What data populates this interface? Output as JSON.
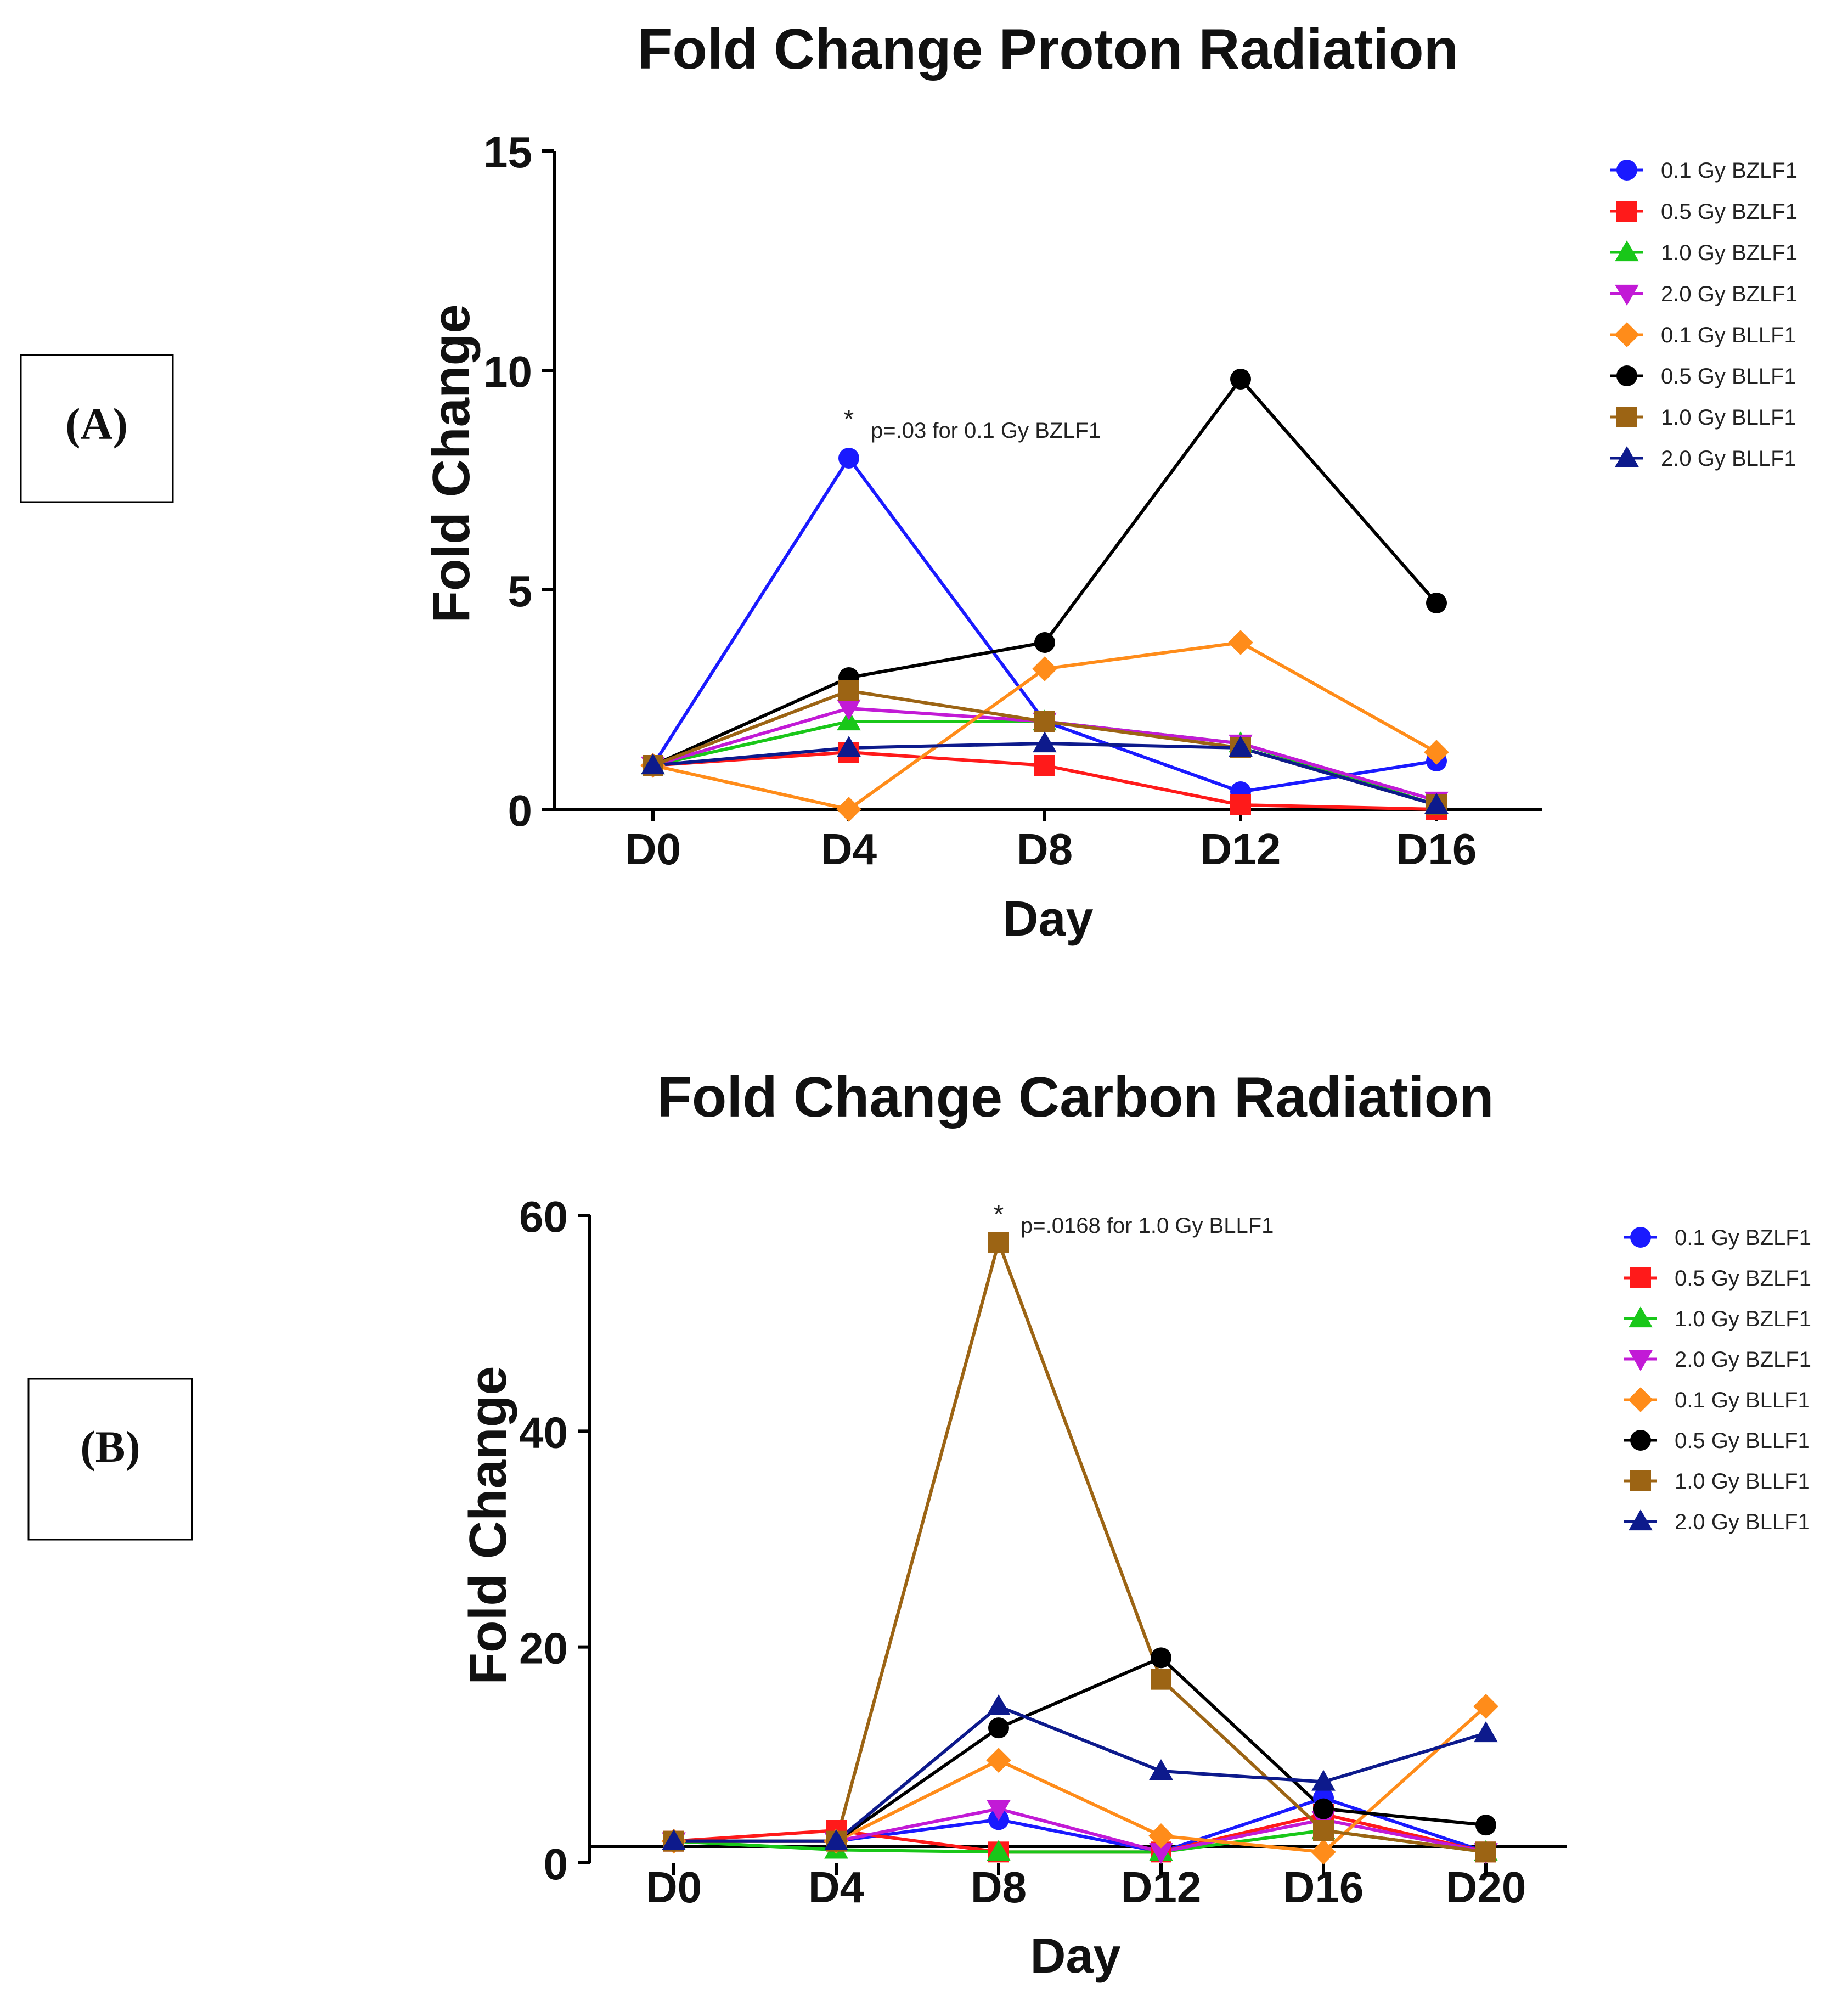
{
  "legend_labels": [
    "0.1 Gy BZLF1",
    "0.5 Gy BZLF1",
    "1.0 Gy BZLF1",
    "2.0 Gy BZLF1",
    "0.1 Gy BLLF1",
    "0.5 Gy BLLF1",
    "1.0 Gy BLLF1",
    "2.0 Gy BLLF1"
  ],
  "series_style": [
    {
      "color": "#1a1aff",
      "marker": "circle"
    },
    {
      "color": "#ff1a1a",
      "marker": "square"
    },
    {
      "color": "#19c719",
      "marker": "triangle-up"
    },
    {
      "color": "#c21ad6",
      "marker": "triangle-down"
    },
    {
      "color": "#ff8c1a",
      "marker": "diamond"
    },
    {
      "color": "#000000",
      "marker": "circle"
    },
    {
      "color": "#9c6414",
      "marker": "square"
    },
    {
      "color": "#0d1a8c",
      "marker": "triangle-up"
    }
  ],
  "chart_data": [
    {
      "panel": "(A)",
      "type": "line",
      "title": "Fold Change Proton Radiation",
      "xlabel": "Day",
      "ylabel": "Fold  Change",
      "categories": [
        "D0",
        "D4",
        "D8",
        "D12",
        "D16"
      ],
      "ylim": [
        0,
        15
      ],
      "yticks": [
        "0",
        "5",
        "10",
        "15"
      ],
      "annotation": {
        "star": "*",
        "text": "p=.03 for 0.1 Gy  BZLF1",
        "at_category": "D4"
      },
      "series": [
        {
          "name": "0.1 Gy BZLF1",
          "values": [
            1.0,
            8.0,
            2.0,
            0.4,
            1.1
          ]
        },
        {
          "name": "0.5 Gy BZLF1",
          "values": [
            1.0,
            1.3,
            1.0,
            0.1,
            0.0
          ]
        },
        {
          "name": "1.0 Gy BZLF1",
          "values": [
            1.0,
            2.0,
            2.0,
            1.5,
            0.1
          ]
        },
        {
          "name": "2.0 Gy BZLF1",
          "values": [
            1.0,
            2.3,
            2.0,
            1.5,
            0.2
          ]
        },
        {
          "name": "0.1 Gy BLLF1",
          "values": [
            1.0,
            0.0,
            3.2,
            3.8,
            1.3
          ]
        },
        {
          "name": "0.5 Gy BLLF1",
          "values": [
            1.0,
            3.0,
            3.8,
            9.8,
            4.7
          ]
        },
        {
          "name": "1.0 Gy BLLF1",
          "values": [
            1.0,
            2.7,
            2.0,
            1.4,
            0.1
          ]
        },
        {
          "name": "2.0 Gy BLLF1",
          "values": [
            1.0,
            1.4,
            1.5,
            1.4,
            0.1
          ]
        }
      ]
    },
    {
      "panel": "(B)",
      "type": "line",
      "title": "Fold Change Carbon Radiation",
      "xlabel": "Day",
      "ylabel": "Fold  Change",
      "categories": [
        "D0",
        "D4",
        "D8",
        "D12",
        "D16",
        "D20"
      ],
      "ylim": [
        0,
        60
      ],
      "yticks": [
        "0",
        "20",
        "40",
        "60"
      ],
      "annotation": {
        "star": "*",
        "text": "p=.0168 for 1.0 Gy  BLLF1",
        "at_category": "D8"
      },
      "series": [
        {
          "name": "0.1 Gy BZLF1",
          "values": [
            2.0,
            2.0,
            4.0,
            1.0,
            6.0,
            1.0
          ]
        },
        {
          "name": "0.5 Gy BZLF1",
          "values": [
            2.0,
            3.0,
            1.0,
            1.0,
            4.5,
            1.0
          ]
        },
        {
          "name": "1.0 Gy BZLF1",
          "values": [
            2.0,
            1.2,
            1.0,
            1.0,
            3.0,
            1.0
          ]
        },
        {
          "name": "2.0 Gy BZLF1",
          "values": [
            2.0,
            2.0,
            5.0,
            1.0,
            4.0,
            1.0
          ]
        },
        {
          "name": "0.1 Gy BLLF1",
          "values": [
            2.0,
            2.0,
            9.5,
            2.5,
            1.0,
            14.5
          ]
        },
        {
          "name": "0.5 Gy BLLF1",
          "values": [
            2.0,
            2.0,
            12.5,
            19.0,
            5.0,
            3.5
          ]
        },
        {
          "name": "1.0 Gy BLLF1",
          "values": [
            2.0,
            2.0,
            57.5,
            17.0,
            3.0,
            1.0
          ]
        },
        {
          "name": "2.0 Gy BLLF1",
          "values": [
            2.0,
            2.0,
            14.5,
            8.5,
            7.5,
            12.0
          ]
        }
      ]
    }
  ]
}
